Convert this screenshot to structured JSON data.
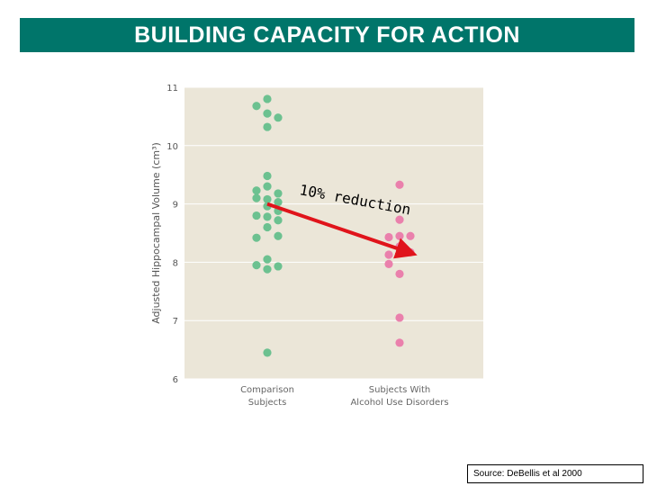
{
  "header": {
    "title": "BUILDING CAPACITY FOR ACTION"
  },
  "source": "Source: DeBellis et al 2000",
  "colors": {
    "title_bg": "#00756a",
    "plot_bg": "#ebe6d8",
    "comparison": "#6cc190",
    "alcohol": "#ea80ac",
    "arrow": "#e0141b"
  },
  "annotation": {
    "text": "10% reduction",
    "from": {
      "category": "Comparison Subjects",
      "y": 9.0
    },
    "to": {
      "category": "Subjects With Alcohol Use Disorders",
      "y": 8.15
    }
  },
  "chart_data": {
    "type": "scatter",
    "title": "",
    "ylabel": "Adjusted Hippocampal Volume (cm³)",
    "xlabel": "",
    "ylim": [
      6,
      11
    ],
    "yticks": [
      "6",
      "7",
      "8",
      "9",
      "10",
      "11"
    ],
    "categories": [
      "Comparison Subjects",
      "Subjects With Alcohol Use Disorders"
    ],
    "category_lines": [
      [
        "Comparison",
        "Subjects"
      ],
      [
        "Subjects With",
        "Alcohol Use Disorders"
      ]
    ],
    "grid": true,
    "series": [
      {
        "category": "Comparison Subjects",
        "points": [
          {
            "y": 10.8,
            "o": 0
          },
          {
            "y": 10.68,
            "o": -1
          },
          {
            "y": 10.55,
            "o": 0
          },
          {
            "y": 10.48,
            "o": 1
          },
          {
            "y": 10.32,
            "o": 0
          },
          {
            "y": 9.48,
            "o": 0
          },
          {
            "y": 9.3,
            "o": 0
          },
          {
            "y": 9.23,
            "o": -1
          },
          {
            "y": 9.18,
            "o": 1
          },
          {
            "y": 9.1,
            "o": -1
          },
          {
            "y": 9.08,
            "o": 0
          },
          {
            "y": 9.03,
            "o": 1
          },
          {
            "y": 8.96,
            "o": 0
          },
          {
            "y": 8.88,
            "o": 1
          },
          {
            "y": 8.8,
            "o": -1
          },
          {
            "y": 8.78,
            "o": 0
          },
          {
            "y": 8.72,
            "o": 1
          },
          {
            "y": 8.6,
            "o": 0
          },
          {
            "y": 8.45,
            "o": 1
          },
          {
            "y": 8.42,
            "o": -1
          },
          {
            "y": 8.05,
            "o": 0
          },
          {
            "y": 7.95,
            "o": -1
          },
          {
            "y": 7.93,
            "o": 1
          },
          {
            "y": 7.88,
            "o": 0
          },
          {
            "y": 6.45,
            "o": 0
          }
        ]
      },
      {
        "category": "Subjects With Alcohol Use Disorders",
        "points": [
          {
            "y": 9.33,
            "o": 0
          },
          {
            "y": 8.73,
            "o": 0
          },
          {
            "y": 8.45,
            "o": 0
          },
          {
            "y": 8.45,
            "o": 1
          },
          {
            "y": 8.43,
            "o": -1
          },
          {
            "y": 8.27,
            "o": 0
          },
          {
            "y": 8.17,
            "o": 1
          },
          {
            "y": 8.13,
            "o": -1
          },
          {
            "y": 7.97,
            "o": -1
          },
          {
            "y": 7.8,
            "o": 0
          },
          {
            "y": 7.05,
            "o": 0
          },
          {
            "y": 6.62,
            "o": 0
          }
        ]
      }
    ]
  }
}
